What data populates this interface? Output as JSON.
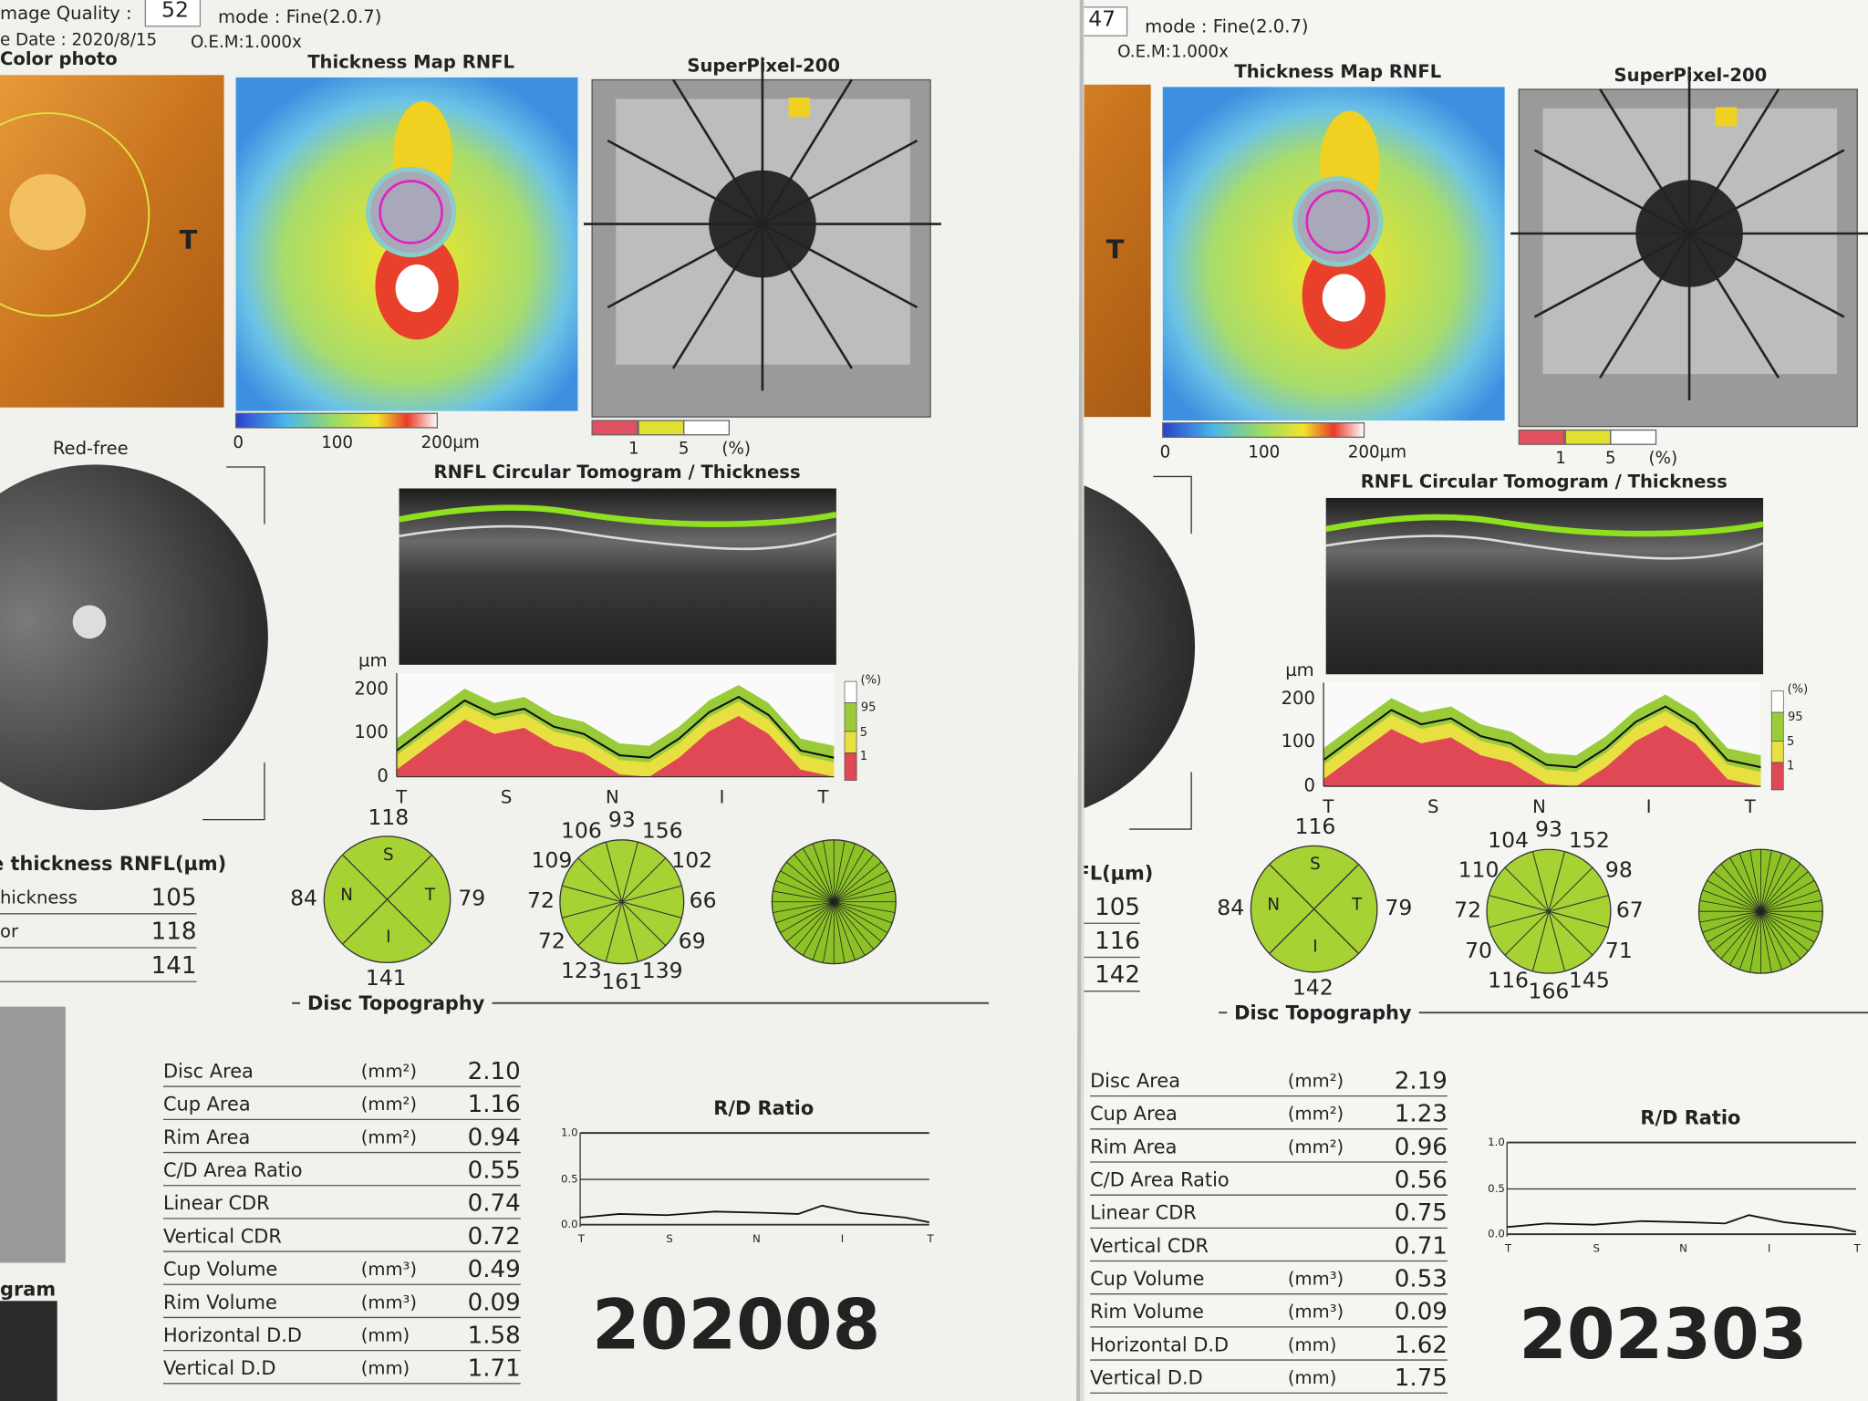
{
  "reports": [
    {
      "header": {
        "quality_label": "mage Quality :",
        "quality": "52",
        "mode": "mode : Fine(2.0.7)",
        "date": "e Date : 2020/8/15",
        "oem": "O.E.M:1.000x"
      },
      "titles": {
        "color_photo": "Color photo",
        "thickness_map": "Thickness Map RNFL",
        "superpixel": "SuperPixel-200",
        "red_free": "Red-free",
        "tomogram": "RNFL Circular Tomogram / Thickness",
        "disc_topography": "Disc Topography",
        "rd_ratio": "R/D Ratio"
      },
      "photo_marker": "T",
      "thickness_scale": [
        "0",
        "100",
        "200µm"
      ],
      "superpixel_scale": [
        "1",
        "5",
        "(%)"
      ],
      "graph": {
        "unit": "µm",
        "yticks": [
          "200",
          "100",
          "0"
        ],
        "xticks": [
          "T",
          "S",
          "N",
          "I",
          "T"
        ],
        "legend": [
          "(%)",
          "95",
          "5",
          "1"
        ]
      },
      "quadrants": {
        "letters": [
          "S",
          "N",
          "T",
          "I"
        ],
        "top": "118",
        "left": "84",
        "right": "79",
        "bottom": "141"
      },
      "clock": [
        "93",
        "156",
        "102",
        "66",
        "69",
        "139",
        "161",
        "123",
        "72",
        "72",
        "109",
        "106"
      ],
      "average": {
        "title": "ge thickness RNFL(µm)",
        "rows": [
          {
            "label": "hickness",
            "value": "105"
          },
          {
            "label": "or",
            "value": "118"
          },
          {
            "value": "141"
          }
        ]
      },
      "disc_table": [
        {
          "label": "Disc Area",
          "unit": "(mm²)",
          "value": "2.10"
        },
        {
          "label": "Cup Area",
          "unit": "(mm²)",
          "value": "1.16"
        },
        {
          "label": "Rim Area",
          "unit": "(mm²)",
          "value": "0.94"
        },
        {
          "label": "C/D Area Ratio",
          "value": "0.55"
        },
        {
          "label": "Linear CDR",
          "value": "0.74"
        },
        {
          "label": "Vertical CDR",
          "value": "0.72"
        },
        {
          "label": "Cup Volume",
          "unit": "(mm³)",
          "value": "0.49"
        },
        {
          "label": "Rim Volume",
          "unit": "(mm³)",
          "value": "0.09"
        },
        {
          "label": "Horizontal D.D",
          "unit": "(mm)",
          "value": "1.58"
        },
        {
          "label": "Vertical D.D",
          "unit": "(mm)",
          "value": "1.71"
        }
      ],
      "rd_graph": {
        "yticks": [
          "1.0",
          "0.5",
          "0.0"
        ],
        "xticks": [
          "T",
          "S",
          "N",
          "I",
          "T"
        ]
      },
      "side_label": "gram",
      "stamp": "202008"
    },
    {
      "header": {
        "quality": "47",
        "mode": "mode : Fine(2.0.7)",
        "oem": "O.E.M:1.000x"
      },
      "titles": {
        "thickness_map": "Thickness Map RNFL",
        "superpixel": "SuperPixel-200",
        "tomogram": "RNFL Circular Tomogram / Thickness",
        "disc_topography": "Disc Topography",
        "rd_ratio": "R/D Ratio"
      },
      "photo_marker": "T",
      "thickness_scale": [
        "0",
        "100",
        "200µm"
      ],
      "superpixel_scale": [
        "1",
        "5",
        "(%)"
      ],
      "graph": {
        "unit": "µm",
        "yticks": [
          "200",
          "100",
          "0"
        ],
        "xticks": [
          "T",
          "S",
          "N",
          "I",
          "T"
        ],
        "legend": [
          "(%)",
          "95",
          "5",
          "1"
        ]
      },
      "quadrants": {
        "letters": [
          "S",
          "N",
          "T",
          "I"
        ],
        "top": "116",
        "left": "84",
        "right": "79",
        "bottom": "142"
      },
      "clock": [
        "93",
        "152",
        "98",
        "67",
        "71",
        "145",
        "166",
        "116",
        "70",
        "72",
        "110",
        "104"
      ],
      "average": {
        "title": "NFL(µm)",
        "rows": [
          {
            "value": "105"
          },
          {
            "value": "116"
          },
          {
            "value": "142"
          }
        ]
      },
      "disc_table": [
        {
          "label": "Disc Area",
          "unit": "(mm²)",
          "value": "2.19"
        },
        {
          "label": "Cup Area",
          "unit": "(mm²)",
          "value": "1.23"
        },
        {
          "label": "Rim Area",
          "unit": "(mm²)",
          "value": "0.96"
        },
        {
          "label": "C/D Area Ratio",
          "value": "0.56"
        },
        {
          "label": "Linear CDR",
          "value": "0.75"
        },
        {
          "label": "Vertical CDR",
          "value": "0.71"
        },
        {
          "label": "Cup Volume",
          "unit": "(mm³)",
          "value": "0.53"
        },
        {
          "label": "Rim Volume",
          "unit": "(mm³)",
          "value": "0.09"
        },
        {
          "label": "Horizontal D.D",
          "unit": "(mm)",
          "value": "1.62"
        },
        {
          "label": "Vertical D.D",
          "unit": "(mm)",
          "value": "1.75"
        }
      ],
      "rd_graph": {
        "yticks": [
          "1.0",
          "0.5",
          "0.0"
        ],
        "xticks": [
          "T",
          "S",
          "N",
          "I",
          "T"
        ]
      },
      "stamp": "202303"
    }
  ]
}
